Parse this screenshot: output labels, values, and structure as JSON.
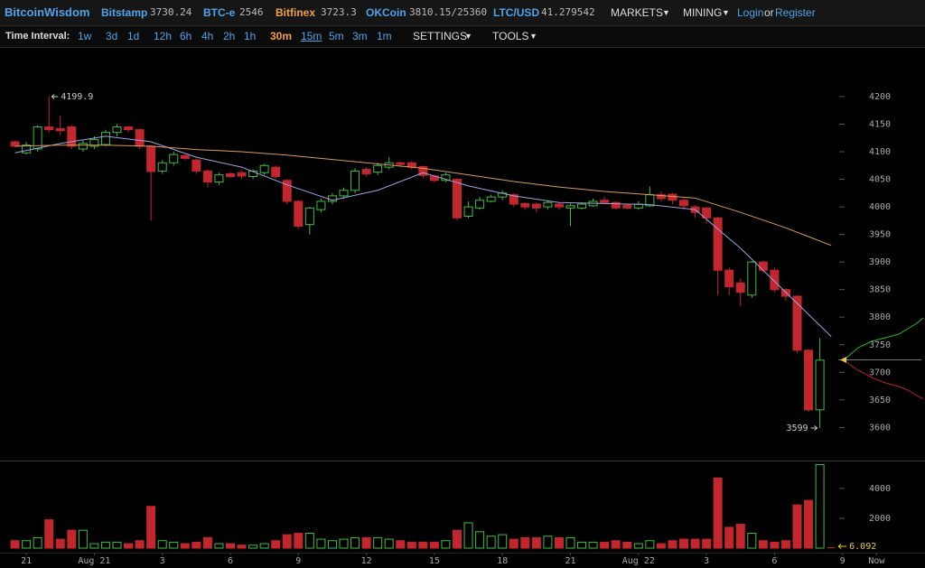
{
  "header": {
    "brand": "BitcoinWisdom",
    "tickers": [
      {
        "name": "Bitstamp",
        "price": "3730.24"
      },
      {
        "name": "BTC-e",
        "price": "2546"
      },
      {
        "name": "Bitfinex",
        "price": "3723.3"
      },
      {
        "name": "OKCoin",
        "price": "3810.15/25360"
      },
      {
        "name": "LTC/USD",
        "price": "41.279542"
      }
    ],
    "markets": "MARKETS",
    "mining": "MINING",
    "login": "Login",
    "or": "or",
    "register": "Register"
  },
  "toolbar": {
    "label": "Time Interval:",
    "intervals": [
      "1w",
      "3d",
      "1d",
      "12h",
      "6h",
      "4h",
      "2h",
      "1h",
      "30m",
      "15m",
      "5m",
      "3m",
      "1m"
    ],
    "settings": "SETTINGS",
    "tools": "TOOLS"
  },
  "chart_data": {
    "type": "candlestick",
    "x": [
      0,
      1,
      2,
      3,
      4,
      5,
      6,
      7,
      8,
      9,
      10,
      11,
      12,
      13,
      14,
      15,
      16,
      17,
      18,
      19,
      20,
      21,
      22,
      23,
      24,
      25,
      26,
      27,
      28,
      29,
      30,
      31,
      32,
      33,
      34,
      35,
      36,
      37,
      38,
      39,
      40,
      41,
      42,
      43,
      44,
      45,
      46,
      47,
      48,
      49,
      50,
      51,
      52,
      53,
      54,
      55,
      56,
      57,
      58,
      59,
      60,
      61,
      62,
      63,
      64,
      65,
      66,
      67,
      68,
      69,
      70,
      71
    ],
    "open": [
      4118,
      4098,
      4105,
      4145,
      4142,
      4145,
      4105,
      4110,
      4113,
      4135,
      4145,
      4140,
      4110,
      4065,
      4080,
      4093,
      4085,
      4065,
      4045,
      4060,
      4062,
      4055,
      4062,
      4072,
      4048,
      4010,
      3968,
      3995,
      4010,
      4020,
      4030,
      4068,
      4063,
      4072,
      4080,
      4080,
      4073,
      4056,
      4048,
      4050,
      3983,
      3998,
      4010,
      4018,
      4022,
      4006,
      4005,
      4000,
      4005,
      3998,
      3998,
      4002,
      4012,
      4008,
      4003,
      3998,
      4002,
      4022,
      4023,
      4012,
      4000,
      3998,
      3980,
      3885,
      3862,
      3840,
      3900,
      3885,
      3850,
      3838,
      3740,
      3632
    ],
    "high": [
      4120,
      4118,
      4148,
      4199.9,
      4165,
      4148,
      4120,
      4128,
      4140,
      4150,
      4147,
      4142,
      4112,
      4085,
      4100,
      4095,
      4088,
      4068,
      4062,
      4063,
      4066,
      4068,
      4078,
      4075,
      4050,
      4012,
      4000,
      4015,
      4025,
      4035,
      4070,
      4072,
      4080,
      4090,
      4082,
      4083,
      4075,
      4058,
      4062,
      4052,
      4010,
      4018,
      4022,
      4030,
      4025,
      4008,
      4008,
      4012,
      4008,
      4006,
      4008,
      4015,
      4018,
      4010,
      4006,
      4010,
      4037,
      4028,
      4025,
      4015,
      4003,
      4000,
      3982,
      3890,
      3870,
      3902,
      3902,
      3890,
      3852,
      3840,
      3742,
      3762
    ],
    "low": [
      4108,
      4095,
      4100,
      4135,
      4130,
      4105,
      4100,
      4105,
      4110,
      4128,
      4135,
      4105,
      3975,
      4060,
      4075,
      4085,
      4060,
      4035,
      4040,
      4052,
      4050,
      4050,
      4058,
      4050,
      4005,
      3960,
      3950,
      3990,
      4005,
      4015,
      4025,
      4055,
      4058,
      4068,
      4072,
      4068,
      4052,
      4045,
      4045,
      3975,
      3980,
      3995,
      4008,
      4012,
      4000,
      3995,
      3990,
      3995,
      3995,
      3965,
      3995,
      4000,
      4005,
      3995,
      3995,
      3995,
      4000,
      4010,
      4005,
      3995,
      3980,
      3970,
      3840,
      3840,
      3820,
      3835,
      3880,
      3845,
      3830,
      3735,
      3628,
      3599
    ],
    "close": [
      4110,
      4112,
      4145,
      4140,
      4138,
      4110,
      4115,
      4122,
      4135,
      4145,
      4140,
      4110,
      4064,
      4080,
      4095,
      4088,
      4065,
      4045,
      4058,
      4055,
      4056,
      4065,
      4075,
      4055,
      4010,
      3965,
      3998,
      4010,
      4020,
      4030,
      4065,
      4060,
      4075,
      4080,
      4077,
      4072,
      4057,
      4048,
      4058,
      3980,
      4000,
      4012,
      4018,
      4025,
      4005,
      4000,
      3998,
      4008,
      4000,
      4002,
      4005,
      4010,
      4008,
      3998,
      3998,
      4005,
      4022,
      4015,
      4012,
      4002,
      3990,
      3980,
      3885,
      3855,
      3845,
      3900,
      3885,
      3850,
      3838,
      3740,
      3632,
      3722
    ],
    "volume": [
      500,
      500,
      700,
      1900,
      600,
      1200,
      1200,
      300,
      400,
      400,
      300,
      500,
      2800,
      500,
      400,
      300,
      400,
      700,
      300,
      300,
      200,
      200,
      300,
      500,
      900,
      1000,
      1000,
      600,
      500,
      600,
      700,
      700,
      700,
      600,
      500,
      400,
      400,
      400,
      500,
      1200,
      1700,
      1100,
      800,
      900,
      600,
      700,
      700,
      800,
      700,
      700,
      400,
      400,
      400,
      500,
      400,
      300,
      500,
      300,
      500,
      600,
      600,
      600,
      4700,
      1400,
      1600,
      1000,
      500,
      400,
      500,
      2900,
      3200,
      5600
    ],
    "current_volume": {
      "x": 72,
      "value": 6.092
    },
    "moving_averages": [
      {
        "color": "#9aa3e0",
        "x": [
          0,
          4,
          8,
          12,
          16,
          20,
          24,
          28,
          32,
          36,
          40,
          44,
          48,
          52,
          56,
          60,
          64,
          68,
          72
        ],
        "values": [
          4098,
          4115,
          4128,
          4118,
          4090,
          4072,
          4040,
          4012,
          4030,
          4062,
          4038,
          4020,
          4008,
          4006,
          4004,
          3995,
          3925,
          3845,
          3765
        ]
      },
      {
        "color": "#d99a5b",
        "x": [
          0,
          4,
          8,
          12,
          16,
          20,
          24,
          28,
          32,
          36,
          40,
          44,
          48,
          52,
          56,
          60,
          64,
          68,
          72
        ],
        "values": [
          4110,
          4112,
          4112,
          4110,
          4104,
          4100,
          4094,
          4086,
          4078,
          4070,
          4058,
          4046,
          4036,
          4028,
          4022,
          4016,
          3990,
          3962,
          3930
        ]
      }
    ],
    "up_color": "#3fbf3f",
    "down_color": "#c1272d",
    "xlim": [
      -1,
      79
    ],
    "xticks": [
      {
        "value": 1,
        "label": "21"
      },
      {
        "value": 7,
        "label": "Aug 21"
      },
      {
        "value": 13,
        "label": "3"
      },
      {
        "value": 19,
        "label": "6"
      },
      {
        "value": 25,
        "label": "9"
      },
      {
        "value": 31,
        "label": "12"
      },
      {
        "value": 37,
        "label": "15"
      },
      {
        "value": 43,
        "label": "18"
      },
      {
        "value": 49,
        "label": "21"
      },
      {
        "value": 55,
        "label": "Aug 22"
      },
      {
        "value": 61,
        "label": "3"
      },
      {
        "value": 67,
        "label": "6"
      },
      {
        "value": 73,
        "label": "9"
      },
      {
        "value": 76,
        "label": "Now"
      }
    ],
    "ylim": [
      3540,
      4290
    ],
    "yticks": [
      3600,
      3650,
      3700,
      3750,
      3800,
      3850,
      3900,
      3950,
      4000,
      4050,
      4100,
      4150,
      4200
    ],
    "volume_ylim": [
      0,
      5750
    ],
    "volume_yticks": [
      2000,
      4000
    ]
  }
}
